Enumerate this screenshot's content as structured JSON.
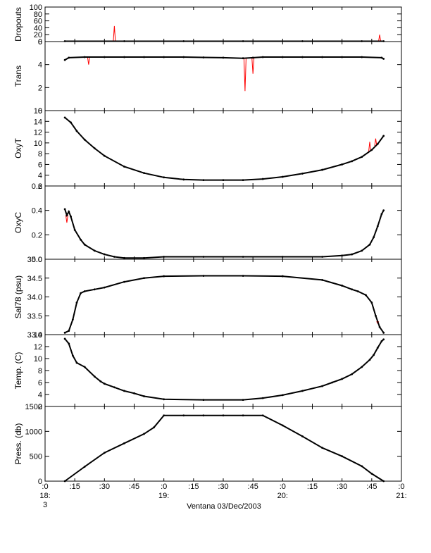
{
  "chart_data": {
    "type": "line",
    "xlabel": "Ventana 03/Dec/2003",
    "x_unit": "minutes after 18:00 on 03/Dec/2003",
    "xlim": [
      0,
      180
    ],
    "x_ticks": [
      {
        "v": 0,
        "l1": ":0",
        "l2": "18:",
        "l3": "3"
      },
      {
        "v": 15,
        "l1": ":15"
      },
      {
        "v": 30,
        "l1": ":30"
      },
      {
        "v": 45,
        "l1": ":45"
      },
      {
        "v": 60,
        "l1": ":0",
        "l2": "19:"
      },
      {
        "v": 75,
        "l1": ":15"
      },
      {
        "v": 90,
        "l1": ":30"
      },
      {
        "v": 105,
        "l1": ":45"
      },
      {
        "v": 120,
        "l1": ":0",
        "l2": "20:"
      },
      {
        "v": 135,
        "l1": ":15"
      },
      {
        "v": 150,
        "l1": ":30"
      },
      {
        "v": 165,
        "l1": ":45"
      },
      {
        "v": 180,
        "l1": ":0",
        "l2": "21:"
      }
    ],
    "colors": {
      "series": "#000000",
      "spikes": "#ff0000"
    },
    "panels": [
      {
        "ylabel": "Dropouts",
        "ylim": [
          0,
          100
        ],
        "yticks": [
          {
            "v": 0,
            "l": "0"
          },
          {
            "v": 20,
            "l": "20"
          },
          {
            "v": 40,
            "l": "40"
          },
          {
            "v": 60,
            "l": "60"
          },
          {
            "v": 80,
            "l": "80"
          },
          {
            "v": 100,
            "l": "100"
          }
        ],
        "x": [
          10,
          40,
          70,
          100,
          130,
          160,
          171
        ],
        "y": [
          1,
          1,
          1,
          1,
          1,
          1,
          1
        ],
        "spikes": [
          {
            "x": 35,
            "y": 45
          },
          {
            "x": 169,
            "y": 20
          }
        ]
      },
      {
        "ylabel": "Trans",
        "ylim": [
          0,
          6
        ],
        "yticks": [
          {
            "v": 0,
            "l": "0"
          },
          {
            "v": 2,
            "l": "2"
          },
          {
            "v": 4,
            "l": "4"
          },
          {
            "v": 6,
            "l": "6"
          }
        ],
        "x": [
          10,
          12,
          20,
          30,
          40,
          50,
          60,
          70,
          80,
          90,
          100,
          105,
          110,
          120,
          130,
          140,
          150,
          160,
          170,
          171
        ],
        "y": [
          4.4,
          4.6,
          4.65,
          4.65,
          4.65,
          4.65,
          4.65,
          4.65,
          4.62,
          4.6,
          4.55,
          4.6,
          4.65,
          4.65,
          4.65,
          4.65,
          4.65,
          4.65,
          4.6,
          4.5
        ],
        "spikes": [
          {
            "x": 22,
            "y": 4.0
          },
          {
            "x": 101,
            "y": 1.7
          },
          {
            "x": 105,
            "y": 3.2
          }
        ]
      },
      {
        "ylabel": "OxyT",
        "ylim": [
          2,
          16
        ],
        "yticks": [
          {
            "v": 2,
            "l": "2"
          },
          {
            "v": 4,
            "l": "4"
          },
          {
            "v": 6,
            "l": "6"
          },
          {
            "v": 8,
            "l": "8"
          },
          {
            "v": 10,
            "l": "10"
          },
          {
            "v": 12,
            "l": "12"
          },
          {
            "v": 14,
            "l": "14"
          },
          {
            "v": 16,
            "l": "16"
          }
        ],
        "x": [
          10,
          13,
          16,
          20,
          25,
          30,
          40,
          50,
          60,
          70,
          80,
          90,
          100,
          110,
          120,
          130,
          140,
          150,
          155,
          160,
          165,
          168,
          171
        ],
        "y": [
          14.7,
          13.8,
          12.2,
          10.6,
          9.0,
          7.6,
          5.6,
          4.4,
          3.6,
          3.2,
          3.1,
          3.1,
          3.1,
          3.3,
          3.7,
          4.3,
          5.0,
          6.0,
          6.6,
          7.4,
          8.7,
          9.8,
          11.3
        ],
        "spikes": [
          {
            "x": 164,
            "y": 10.2
          },
          {
            "x": 167,
            "y": 10.8
          }
        ]
      },
      {
        "ylabel": "OxyC",
        "ylim": [
          0,
          0.6
        ],
        "yticks": [
          {
            "v": 0,
            "l": "0.0"
          },
          {
            "v": 0.2,
            "l": "0.2"
          },
          {
            "v": 0.4,
            "l": "0.4"
          },
          {
            "v": 0.6,
            "l": "0.6"
          }
        ],
        "x": [
          10,
          11,
          12,
          13,
          15,
          18,
          20,
          25,
          30,
          35,
          40,
          50,
          60,
          80,
          100,
          120,
          140,
          150,
          155,
          160,
          164,
          166,
          168,
          170,
          171
        ],
        "y": [
          0.41,
          0.36,
          0.39,
          0.35,
          0.24,
          0.16,
          0.12,
          0.07,
          0.04,
          0.02,
          0.01,
          0.01,
          0.02,
          0.02,
          0.02,
          0.02,
          0.02,
          0.03,
          0.04,
          0.07,
          0.12,
          0.18,
          0.27,
          0.37,
          0.4
        ],
        "spikes": [
          {
            "x": 11,
            "y": 0.3
          }
        ]
      },
      {
        "ylabel": "Sal78 (psu)",
        "ylim": [
          33.0,
          35.0
        ],
        "yticks": [
          {
            "v": 33.0,
            "l": "33.0"
          },
          {
            "v": 33.5,
            "l": "33.5"
          },
          {
            "v": 34.0,
            "l": "34.0"
          },
          {
            "v": 34.5,
            "l": "34.5"
          },
          {
            "v": 35.0,
            "l": "35.0"
          }
        ],
        "x": [
          10,
          12,
          14,
          16,
          18,
          20,
          25,
          30,
          40,
          50,
          60,
          80,
          100,
          120,
          140,
          150,
          155,
          158,
          162,
          165,
          167,
          169,
          171
        ],
        "y": [
          33.05,
          33.1,
          33.4,
          33.85,
          34.1,
          34.15,
          34.2,
          34.25,
          34.4,
          34.5,
          34.55,
          34.56,
          34.56,
          34.55,
          34.45,
          34.3,
          34.2,
          34.15,
          34.05,
          33.85,
          33.5,
          33.2,
          33.05
        ],
        "spikes": [
          {
            "x": 168,
            "y": 33.3
          }
        ]
      },
      {
        "ylabel": "Temp. (C)",
        "ylim": [
          2,
          14
        ],
        "yticks": [
          {
            "v": 2,
            "l": "2"
          },
          {
            "v": 4,
            "l": "4"
          },
          {
            "v": 6,
            "l": "6"
          },
          {
            "v": 8,
            "l": "8"
          },
          {
            "v": 10,
            "l": "10"
          },
          {
            "v": 12,
            "l": "12"
          },
          {
            "v": 14,
            "l": "14"
          }
        ],
        "x": [
          10,
          12,
          14,
          16,
          20,
          25,
          28,
          30,
          35,
          40,
          45,
          50,
          60,
          80,
          100,
          110,
          120,
          130,
          140,
          145,
          150,
          155,
          160,
          164,
          166,
          168,
          170,
          171
        ],
        "y": [
          13.3,
          12.5,
          10.5,
          9.3,
          8.6,
          7.0,
          6.2,
          5.8,
          5.2,
          4.6,
          4.2,
          3.7,
          3.2,
          3.1,
          3.1,
          3.4,
          3.9,
          4.6,
          5.4,
          6.0,
          6.6,
          7.4,
          8.6,
          9.8,
          10.6,
          11.8,
          12.9,
          13.2
        ],
        "spikes": []
      },
      {
        "ylabel": "Press. (db)",
        "ylim": [
          0,
          1500
        ],
        "yticks": [
          {
            "v": 0,
            "l": "0"
          },
          {
            "v": 500,
            "l": "500"
          },
          {
            "v": 1000,
            "l": "1000"
          },
          {
            "v": 1500,
            "l": "1500"
          }
        ],
        "x": [
          10,
          20,
          30,
          40,
          50,
          55,
          60,
          70,
          80,
          90,
          100,
          110,
          120,
          130,
          140,
          150,
          160,
          165,
          171
        ],
        "y": [
          0,
          290,
          570,
          760,
          950,
          1080,
          1320,
          1320,
          1320,
          1320,
          1320,
          1320,
          1120,
          900,
          670,
          500,
          300,
          150,
          0
        ],
        "spikes": []
      }
    ]
  }
}
